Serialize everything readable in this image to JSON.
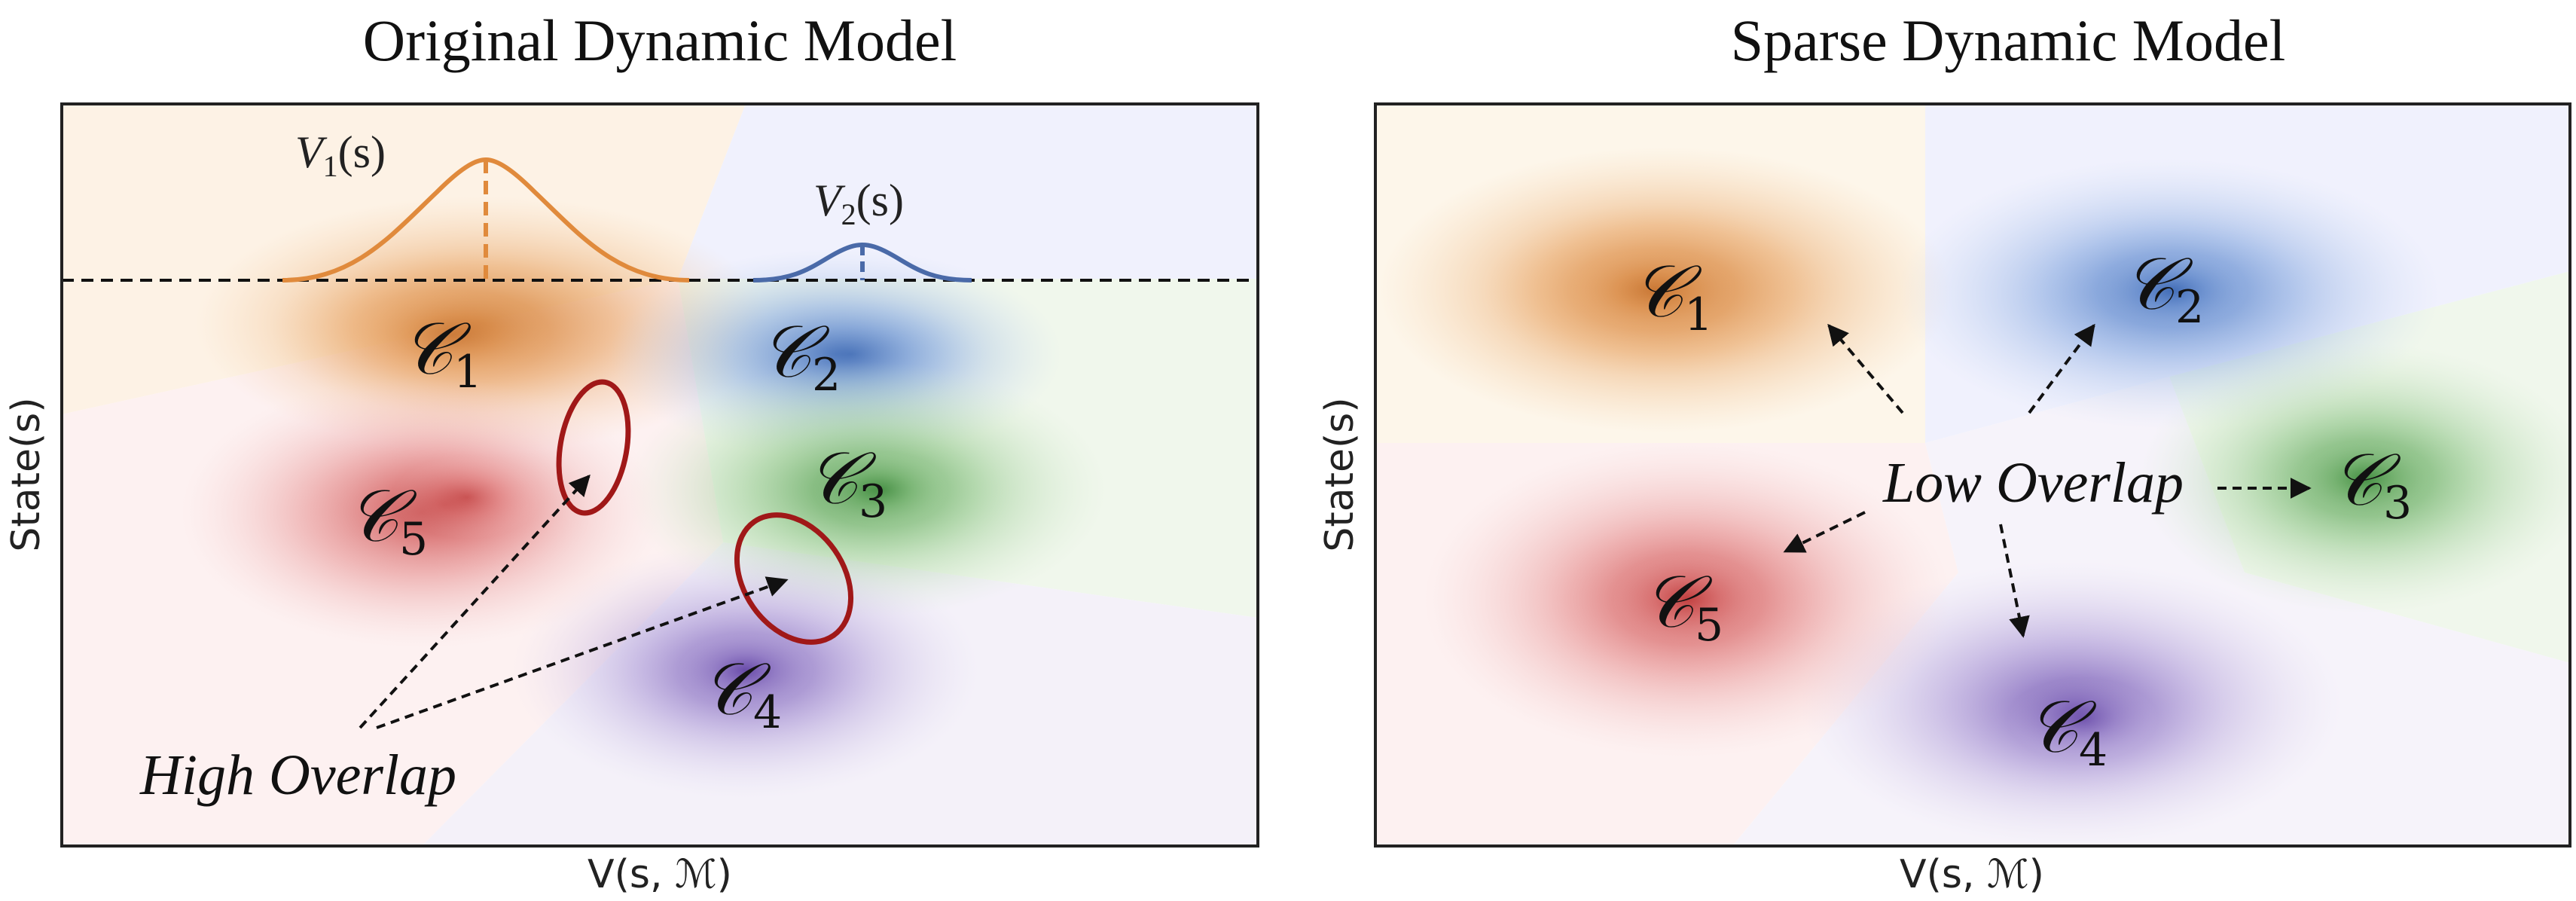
{
  "panels": [
    {
      "title": "Original Dynamic Model",
      "xlabel": "V(s, ℳ)",
      "ylabel": "State(s)",
      "v1_label": "V",
      "v1_sub": "1",
      "v1_arg": "(s)",
      "v2_label": "V",
      "v2_sub": "2",
      "v2_arg": "(s)",
      "annotation": "High Overlap",
      "clusters": [
        {
          "symbol": "𝒞",
          "index": "1",
          "color": "#e08a3c"
        },
        {
          "symbol": "𝒞",
          "index": "2",
          "color": "#4f7fc9"
        },
        {
          "symbol": "𝒞",
          "index": "3",
          "color": "#4f9e4a"
        },
        {
          "symbol": "𝒞",
          "index": "4",
          "color": "#7a58b8"
        },
        {
          "symbol": "𝒞",
          "index": "5",
          "color": "#d04444"
        }
      ]
    },
    {
      "title": "Sparse Dynamic Model",
      "xlabel": "V(s, ℳ)",
      "ylabel": "State(s)",
      "annotation": "Low Overlap",
      "clusters": [
        {
          "symbol": "𝒞",
          "index": "1",
          "color": "#e08a3c"
        },
        {
          "symbol": "𝒞",
          "index": "2",
          "color": "#4f7fc9"
        },
        {
          "symbol": "𝒞",
          "index": "3",
          "color": "#4f9e4a"
        },
        {
          "symbol": "𝒞",
          "index": "4",
          "color": "#7a58b8"
        },
        {
          "symbol": "𝒞",
          "index": "5",
          "color": "#d04444"
        }
      ]
    }
  ],
  "colors": {
    "orange": "#e08a3c",
    "blue": "#4f7fc9",
    "green": "#4f9e4a",
    "purple": "#7a58b8",
    "red": "#d04444",
    "highlight_ellipse": "#a01818"
  }
}
